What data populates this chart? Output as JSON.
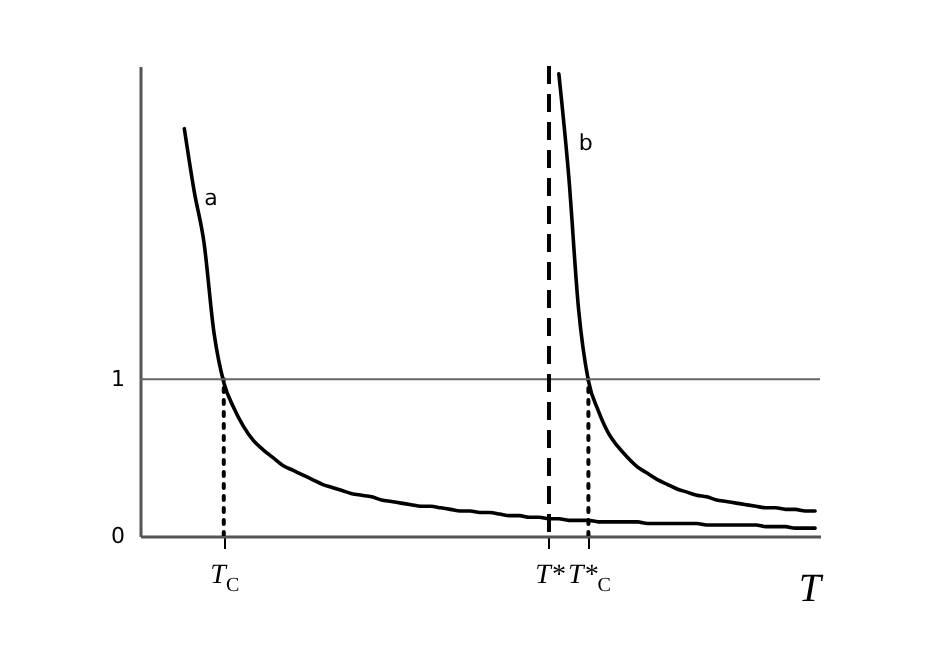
{
  "chart_data": {
    "type": "line",
    "xlabel": "T",
    "ylim": [
      0,
      3
    ],
    "yticks": [
      0,
      1
    ],
    "marker": "none",
    "categories": [
      null,
      null,
      null,
      null,
      null,
      null,
      null,
      null,
      "T$_{C}$",
      null,
      null,
      null,
      null,
      null,
      null,
      null,
      null,
      null,
      null,
      null,
      null,
      null,
      null,
      null,
      null,
      null,
      null,
      null,
      null,
      null,
      null,
      null,
      null,
      null,
      null,
      null,
      null,
      null,
      null,
      null,
      null,
      "T*",
      null,
      null,
      null,
      "T*$_{C}$",
      null,
      null,
      null,
      null,
      null,
      null,
      null,
      null,
      null,
      null,
      null,
      null,
      null,
      null,
      null,
      null,
      null,
      null,
      null,
      null,
      null,
      null,
      null
    ],
    "series": [
      {
        "name": "a",
        "color": "#000000",
        "line_style": "solid",
        "values": [
          null,
          null,
          null,
          null,
          2.6,
          2.2,
          1.87,
          1.3,
          0.98,
          0.82,
          0.7,
          0.61,
          0.55,
          0.5,
          0.45,
          0.42,
          0.39,
          0.36,
          0.33,
          0.31,
          0.29,
          0.27,
          0.26,
          0.25,
          0.23,
          0.22,
          0.21,
          0.2,
          0.19,
          0.19,
          0.18,
          0.17,
          0.16,
          0.16,
          0.15,
          0.15,
          0.14,
          0.13,
          0.13,
          0.12,
          0.12,
          0.11,
          0.11,
          0.1,
          0.1,
          0.1,
          0.09,
          0.09,
          0.09,
          0.09,
          0.09,
          0.08,
          0.08,
          0.08,
          0.08,
          0.08,
          0.08,
          0.07,
          0.07,
          0.07,
          0.07,
          0.07,
          0.07,
          0.06,
          0.06,
          0.06,
          0.05,
          0.05,
          0.05
        ]
      },
      {
        "name": "b",
        "color": "#000000",
        "line_style": "solid",
        "values": [
          null,
          null,
          null,
          null,
          null,
          null,
          null,
          null,
          null,
          null,
          null,
          null,
          null,
          null,
          null,
          null,
          null,
          null,
          null,
          null,
          null,
          null,
          null,
          null,
          null,
          null,
          null,
          null,
          null,
          null,
          null,
          null,
          null,
          null,
          null,
          null,
          null,
          null,
          null,
          null,
          null,
          null,
          2.95,
          2.3,
          1.45,
          0.99,
          0.8,
          0.66,
          0.57,
          0.5,
          0.44,
          0.4,
          0.36,
          0.33,
          0.3,
          0.28,
          0.26,
          0.25,
          0.23,
          0.22,
          0.21,
          0.2,
          0.19,
          0.18,
          0.18,
          0.17,
          0.17,
          0.16,
          0.16
        ]
      },
      {
        "color": "#000000",
        "line_style": "dotted",
        "x": [
          "T$_{C}$",
          "T$_{C}$"
        ],
        "values": [
          0,
          1
        ]
      },
      {
        "color": "#000000",
        "line_style": "dotted",
        "x": [
          "T*$_{C}$",
          "T*$_{C}$"
        ],
        "values": [
          0,
          1
        ]
      }
    ],
    "ref_lines": [
      {
        "axis": "y",
        "value": 1,
        "color": "#666666",
        "line_style": "solid"
      },
      {
        "axis": "x",
        "value": "T*",
        "color": "#000000",
        "line_style": "dashed"
      }
    ]
  }
}
